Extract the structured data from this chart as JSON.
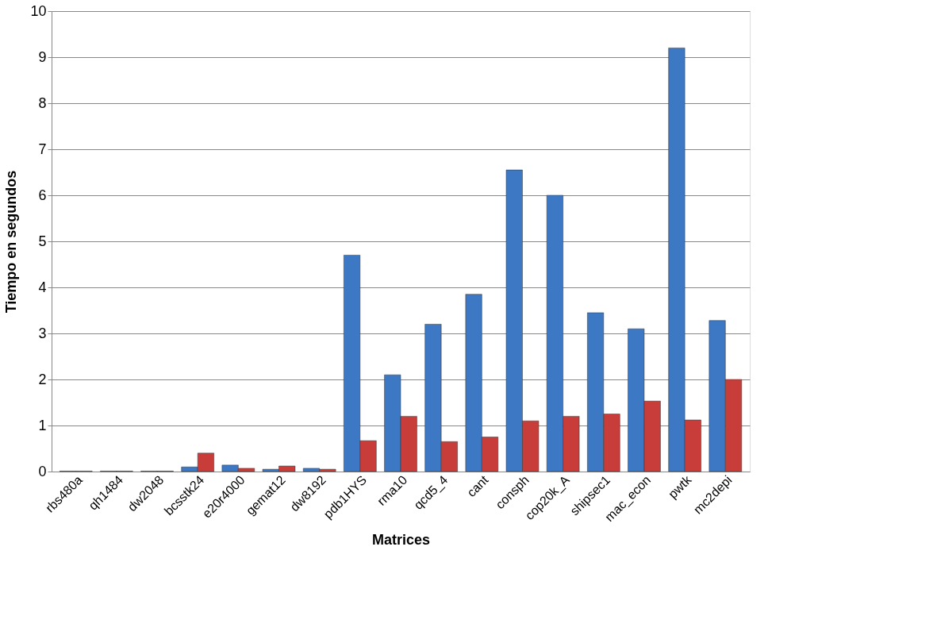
{
  "chart_data": {
    "type": "bar",
    "xlabel": "Matrices",
    "ylabel": "Tiempo en segundos",
    "categories": [
      "rbs480a",
      "qh1484",
      "dw2048",
      "bcsstk24",
      "e20r4000",
      "gemat12",
      "dw8192",
      "pdb1HYS",
      "rma10",
      "qcd5_4",
      "cant",
      "consph",
      "cop20k_A",
      "shipsec1",
      "mac_econ",
      "pwtk",
      "mc2depi"
    ],
    "series": [
      {
        "color": "#3c78c3",
        "values": [
          0.01,
          0.01,
          0.01,
          0.1,
          0.14,
          0.05,
          0.07,
          4.7,
          2.1,
          3.2,
          3.85,
          6.55,
          6.0,
          3.45,
          3.1,
          9.2,
          3.28
        ]
      },
      {
        "color": "#c83c3a",
        "values": [
          0.01,
          0.01,
          0.01,
          0.4,
          0.07,
          0.12,
          0.05,
          0.67,
          1.2,
          0.65,
          0.75,
          1.1,
          1.2,
          1.25,
          1.53,
          1.12,
          2.0
        ]
      }
    ],
    "ylim": [
      0,
      10
    ],
    "yticks": [
      0,
      1,
      2,
      3,
      4,
      5,
      6,
      7,
      8,
      9,
      10
    ],
    "grid": "y"
  }
}
